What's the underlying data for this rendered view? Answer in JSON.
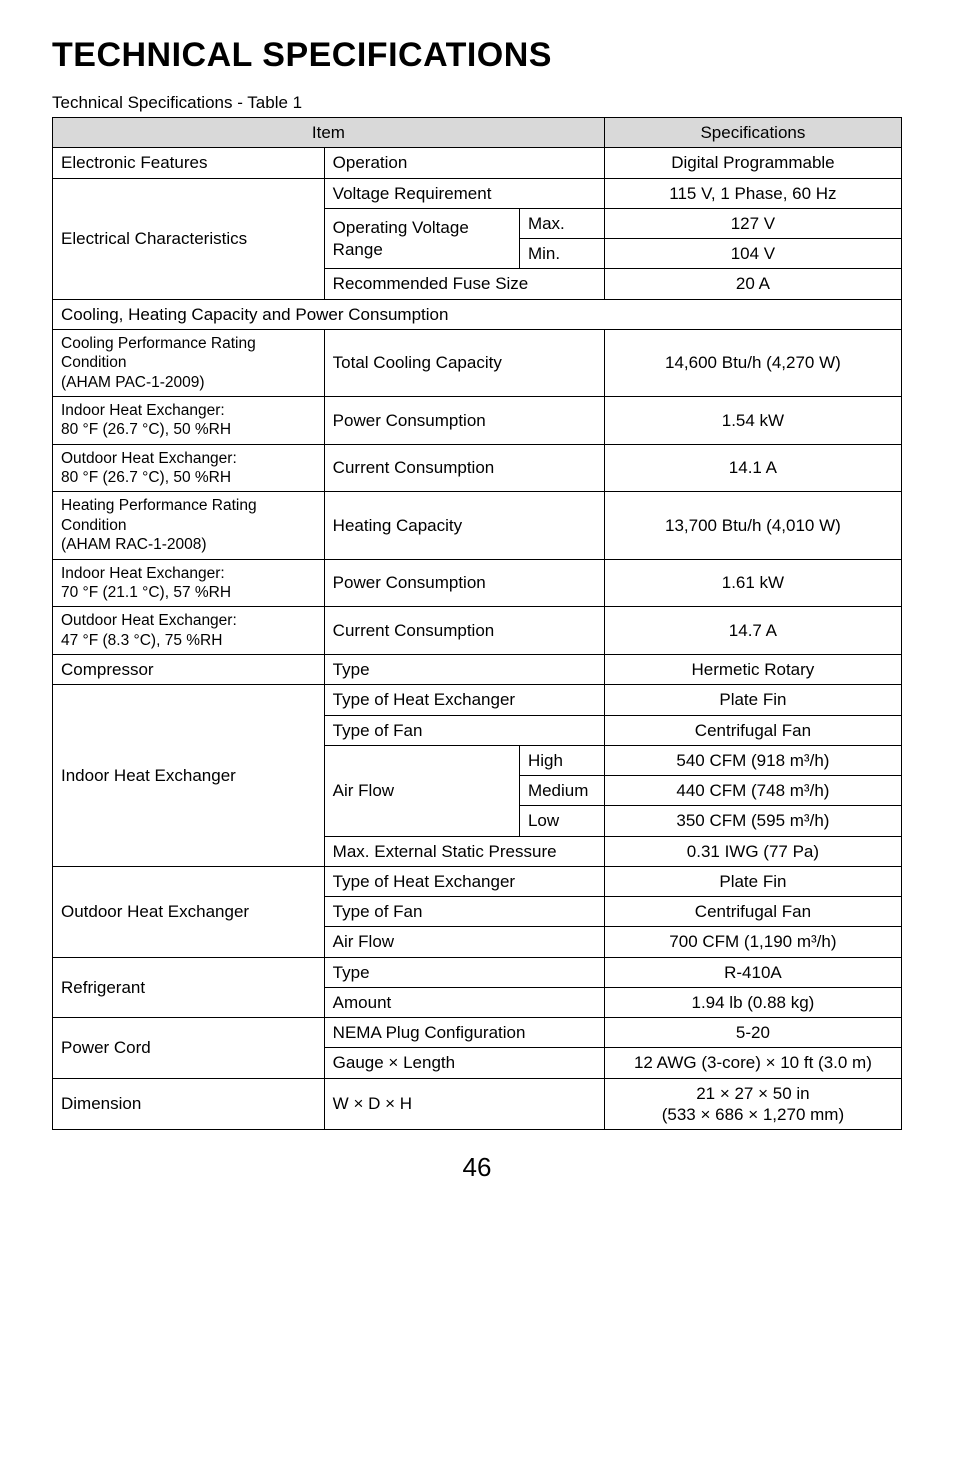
{
  "title": "TECHNICAL SPECIFICATIONS",
  "caption": "Technical Specifications - Table 1",
  "pagenum": "46",
  "hdr": {
    "item": "Item",
    "spec": "Specifications"
  },
  "r": {
    "ef_label": "Electronic Features",
    "ef_op": "Operation",
    "ef_spec": "Digital Programmable",
    "ec_label": "Electrical Characteristics",
    "ec_vr": "Voltage Requirement",
    "ec_vr_spec": "115 V, 1 Phase, 60 Hz",
    "ec_ovr": "Operating Voltage Range",
    "ec_max": "Max.",
    "ec_max_spec": "127 V",
    "ec_min": "Min.",
    "ec_min_spec": "104 V",
    "ec_fuse": "Recommended Fuse Size",
    "ec_fuse_spec": "20 A",
    "chc": "Cooling, Heating Capacity and Power Consumption",
    "cpr": "Cooling Performance Rating Condition\n(AHAM PAC-1-2009)",
    "cpr_tcc": "Total Cooling Capacity",
    "cpr_tcc_spec": "14,600 Btu/h (4,270 W)",
    "ihe1": "Indoor Heat Exchanger:\n80 °F (26.7 °C), 50 %RH",
    "ihe1_pc": "Power Consumption",
    "ihe1_pc_spec": "1.54 kW",
    "ohe1": "Outdoor Heat Exchanger:\n80 °F (26.7 °C), 50 %RH",
    "ohe1_cc": "Current Consumption",
    "ohe1_cc_spec": "14.1 A",
    "hpr": "Heating Performance Rating Condition\n(AHAM RAC-1-2008)",
    "hpr_hc": "Heating Capacity",
    "hpr_hc_spec": "13,700 Btu/h (4,010 W)",
    "ihe2": "Indoor Heat Exchanger:\n70 °F (21.1 °C), 57 %RH",
    "ihe2_pc": "Power Consumption",
    "ihe2_pc_spec": "1.61 kW",
    "ohe2": "Outdoor Heat Exchanger:\n47 °F (8.3 °C), 75 %RH",
    "ohe2_cc": "Current Consumption",
    "ohe2_cc_spec": "14.7 A",
    "comp": "Compressor",
    "comp_type": "Type",
    "comp_spec": "Hermetic Rotary",
    "ihe": "Indoor Heat Exchanger",
    "ihe_te": "Type of Heat Exchanger",
    "ihe_te_spec": "Plate Fin",
    "ihe_tf": "Type of Fan",
    "ihe_tf_spec": "Centrifugal Fan",
    "ihe_af": "Air Flow",
    "ihe_high": "High",
    "ihe_high_spec": "540 CFM (918 m³/h)",
    "ihe_med": "Medium",
    "ihe_med_spec": "440 CFM (748 m³/h)",
    "ihe_low": "Low",
    "ihe_low_spec": "350 CFM (595 m³/h)",
    "ihe_mesp": "Max. External Static Pressure",
    "ihe_mesp_spec": "0.31 IWG (77 Pa)",
    "ohe": "Outdoor Heat Exchanger",
    "ohe_te": "Type of Heat Exchanger",
    "ohe_te_spec": "Plate Fin",
    "ohe_tf": "Type of Fan",
    "ohe_tf_spec": "Centrifugal Fan",
    "ohe_af": "Air Flow",
    "ohe_af_spec": "700 CFM (1,190 m³/h)",
    "ref": "Refrigerant",
    "ref_type": "Type",
    "ref_type_spec": "R-410A",
    "ref_amt": "Amount",
    "ref_amt_spec": "1.94 lb (0.88 kg)",
    "pc": "Power Cord",
    "pc_nema": "NEMA Plug Configuration",
    "pc_nema_spec": "5-20",
    "pc_gl": "Gauge × Length",
    "pc_gl_spec": "12 AWG (3-core) × 10 ft (3.0 m)",
    "dim": "Dimension",
    "dim_wdh": "W × D × H",
    "dim_spec": "21 × 27 × 50 in\n(533 × 686 × 1,270 mm)"
  }
}
